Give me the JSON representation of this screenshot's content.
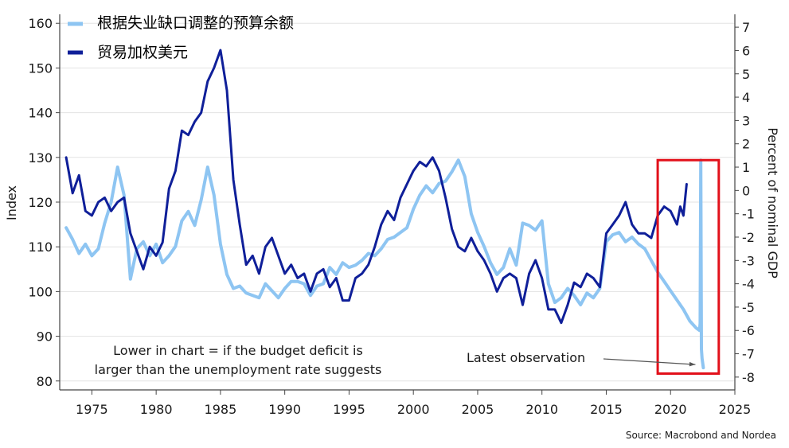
{
  "chart_data": {
    "type": "line",
    "title": "",
    "xlabel": "",
    "ylabel_left": "Index",
    "ylabel_right": "Percent of nominal GDP",
    "xlim": [
      1972.5,
      2025
    ],
    "ylim_left": [
      78,
      162
    ],
    "ylim_right": [
      -8.55,
      7.55
    ],
    "x_ticks": [
      1975,
      1980,
      1985,
      1990,
      1995,
      2000,
      2005,
      2010,
      2015,
      2020,
      2025
    ],
    "y_ticks_left": [
      80,
      90,
      100,
      110,
      120,
      130,
      140,
      150,
      160
    ],
    "y_ticks_right": [
      -8,
      -7,
      -6,
      -5,
      -4,
      -3,
      -2,
      -1,
      0,
      1,
      2,
      3,
      4,
      5,
      6,
      7
    ],
    "grid": "horizontal",
    "legend_position": "top-left",
    "series": [
      {
        "name": "根据失业缺口调整的预算余额",
        "axis": "right",
        "color": "#8ec5f2",
        "x": [
          1973.0,
          1973.5,
          1974.0,
          1974.5,
          1975.0,
          1975.5,
          1976.0,
          1976.5,
          1977.0,
          1977.5,
          1978.0,
          1978.5,
          1979.0,
          1979.5,
          1980.0,
          1980.5,
          1981.0,
          1981.5,
          1982.0,
          1982.5,
          1983.0,
          1983.5,
          1984.0,
          1984.5,
          1985.0,
          1985.5,
          1986.0,
          1986.5,
          1987.0,
          1987.5,
          1988.0,
          1988.5,
          1989.0,
          1989.5,
          1990.0,
          1990.5,
          1991.0,
          1991.5,
          1992.0,
          1992.5,
          1993.0,
          1993.5,
          1994.0,
          1994.5,
          1995.0,
          1995.5,
          1996.0,
          1996.5,
          1997.0,
          1997.5,
          1998.0,
          1998.5,
          1999.0,
          1999.5,
          2000.0,
          2000.5,
          2001.0,
          2001.5,
          2002.0,
          2002.5,
          2003.0,
          2003.5,
          2004.0,
          2004.5,
          2005.0,
          2005.5,
          2006.0,
          2006.5,
          2007.0,
          2007.5,
          2008.0,
          2008.5,
          2009.0,
          2009.5,
          2010.0,
          2010.5,
          2011.0,
          2011.5,
          2012.0,
          2012.5,
          2013.0,
          2013.5,
          2014.0,
          2014.5,
          2015.0,
          2015.5,
          2016.0,
          2016.5,
          2017.0,
          2017.5,
          2018.0,
          2018.5,
          2019.0,
          2019.5,
          2020.0,
          2020.5,
          2021.0,
          2021.5,
          2022.0,
          2022.25,
          2022.3,
          2022.35,
          2022.4,
          2022.45,
          2022.5,
          2022.55
        ],
        "values": [
          -1.6,
          -2.1,
          -2.7,
          -2.3,
          -2.8,
          -2.5,
          -1.4,
          -0.5,
          1.0,
          -0.2,
          -3.8,
          -2.5,
          -2.2,
          -2.8,
          -2.3,
          -3.1,
          -2.8,
          -2.4,
          -1.3,
          -0.9,
          -1.5,
          -0.4,
          1.0,
          -0.2,
          -2.3,
          -3.6,
          -4.2,
          -4.1,
          -4.4,
          -4.5,
          -4.6,
          -4.0,
          -4.3,
          -4.6,
          -4.2,
          -3.9,
          -3.9,
          -4.0,
          -4.5,
          -4.1,
          -4.0,
          -3.3,
          -3.6,
          -3.1,
          -3.3,
          -3.2,
          -3.0,
          -2.7,
          -2.8,
          -2.5,
          -2.1,
          -2.0,
          -1.8,
          -1.6,
          -0.8,
          -0.2,
          0.2,
          -0.1,
          0.3,
          0.4,
          0.8,
          1.3,
          0.6,
          -1.0,
          -1.8,
          -2.4,
          -3.1,
          -3.6,
          -3.3,
          -2.5,
          -3.2,
          -1.4,
          -1.5,
          -1.7,
          -1.3,
          -4.0,
          -4.8,
          -4.6,
          -4.2,
          -4.5,
          -4.9,
          -4.4,
          -4.6,
          -4.2,
          -2.2,
          -1.9,
          -1.8,
          -2.2,
          -2.0,
          -2.3,
          -2.5,
          -3.0,
          -3.5,
          -3.9,
          -4.3,
          -4.7,
          -5.1,
          -5.6,
          -5.9,
          -6.0,
          -5.7,
          1.3,
          -6.8,
          -7.2,
          -7.4,
          -7.6
        ]
      },
      {
        "name": "贸易加权美元",
        "axis": "left",
        "color": "#0f1f99",
        "x": [
          1973.0,
          1973.5,
          1974.0,
          1974.5,
          1975.0,
          1975.5,
          1976.0,
          1976.5,
          1977.0,
          1977.5,
          1978.0,
          1978.5,
          1979.0,
          1979.5,
          1980.0,
          1980.5,
          1981.0,
          1981.5,
          1982.0,
          1982.5,
          1983.0,
          1983.5,
          1984.0,
          1984.5,
          1985.0,
          1985.5,
          1986.0,
          1986.5,
          1987.0,
          1987.5,
          1988.0,
          1988.5,
          1989.0,
          1989.5,
          1990.0,
          1990.5,
          1991.0,
          1991.5,
          1992.0,
          1992.5,
          1993.0,
          1993.5,
          1994.0,
          1994.5,
          1995.0,
          1995.5,
          1996.0,
          1996.5,
          1997.0,
          1997.5,
          1998.0,
          1998.5,
          1999.0,
          1999.5,
          2000.0,
          2000.5,
          2001.0,
          2001.5,
          2002.0,
          2002.5,
          2003.0,
          2003.5,
          2004.0,
          2004.5,
          2005.0,
          2005.5,
          2006.0,
          2006.5,
          2007.0,
          2007.5,
          2008.0,
          2008.5,
          2009.0,
          2009.5,
          2010.0,
          2010.5,
          2011.0,
          2011.5,
          2012.0,
          2012.5,
          2013.0,
          2013.5,
          2014.0,
          2014.5,
          2015.0,
          2015.5,
          2016.0,
          2016.5,
          2017.0,
          2017.5,
          2018.0,
          2018.5,
          2019.0,
          2019.5,
          2020.0,
          2020.5,
          2020.75,
          2021.0,
          2021.25
        ],
        "values": [
          130,
          122,
          126,
          118,
          117,
          120,
          121,
          118,
          120,
          121,
          113,
          109,
          105,
          110,
          108,
          111,
          123,
          127,
          136,
          135,
          138,
          140,
          147,
          150,
          154,
          145,
          125,
          115,
          106,
          108,
          104,
          110,
          112,
          108,
          104,
          106,
          103,
          104,
          100,
          104,
          105,
          101,
          103,
          98,
          98,
          103,
          104,
          106,
          110,
          115,
          118,
          116,
          121,
          124,
          127,
          129,
          128,
          130,
          127,
          121,
          114,
          110,
          109,
          112,
          109,
          107,
          104,
          100,
          103,
          104,
          103,
          97,
          104,
          107,
          103,
          96,
          96,
          93,
          97,
          102,
          101,
          104,
          103,
          101,
          113,
          115,
          117,
          120,
          115,
          113,
          113,
          112,
          117,
          119,
          118,
          115,
          119,
          117,
          124
        ]
      }
    ],
    "annotations": [
      {
        "id": "bottom-left-note",
        "lines": [
          "Lower in chart = if the budget deficit is",
          "larger than the unemployment rate suggests"
        ]
      },
      {
        "id": "latest-observation",
        "text": "Latest observation"
      }
    ],
    "highlight_box": {
      "x_range": [
        2019.0,
        2023.75
      ],
      "y_range_right": [
        -7.85,
        1.3
      ],
      "color": "#e2101a"
    },
    "source": "Source: Macrobond and Nordea"
  }
}
